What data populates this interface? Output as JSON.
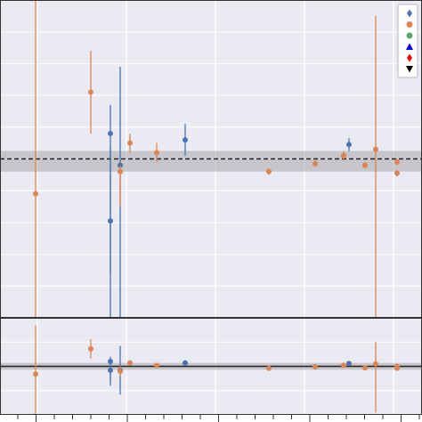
{
  "chart_data": [
    {
      "type": "scatter",
      "panel": "main",
      "grid": true,
      "xlim": [
        0,
        23.7
      ],
      "ylim": [
        0,
        10
      ],
      "legend": {
        "placement": "top-right",
        "entries": [
          {
            "marker": "diamond",
            "color": "#4c72b0"
          },
          {
            "marker": "circle",
            "color": "#dd8452"
          },
          {
            "marker": "circle",
            "color": "#55a868"
          },
          {
            "marker": "triangle-up",
            "color": "#0000ff"
          },
          {
            "marker": "diamond",
            "color": "#ff0000"
          },
          {
            "marker": "triangle-down",
            "color": "#000000"
          }
        ]
      },
      "reference": {
        "value": 5.0,
        "band": [
          4.6,
          5.25
        ],
        "style": "dashed",
        "color": "#222222"
      },
      "points": [
        {
          "x": 2.0,
          "y": 3.9,
          "err_lo": 3.9,
          "err_hi": 6.1,
          "color": "#dd8452"
        },
        {
          "x": 5.1,
          "y": 7.1,
          "err_lo": 1.3,
          "err_hi": 1.3,
          "color": "#dd8452"
        },
        {
          "x": 6.2,
          "y": 5.8,
          "err_lo": 4.4,
          "err_hi": 0.9,
          "color": "#4c72b0"
        },
        {
          "x": 6.2,
          "y": 3.05,
          "err_lo": 3.05,
          "err_hi": 2.35,
          "color": "#4c72b0"
        },
        {
          "x": 6.75,
          "y": 4.8,
          "err_lo": 4.8,
          "err_hi": 3.1,
          "color": "#4c72b0"
        },
        {
          "x": 6.75,
          "y": 4.6,
          "err_lo": 1.1,
          "err_hi": 0.2,
          "color": "#dd8452"
        },
        {
          "x": 7.3,
          "y": 5.5,
          "err_lo": 0.3,
          "err_hi": 0.3,
          "color": "#dd8452"
        },
        {
          "x": 8.8,
          "y": 5.2,
          "err_lo": 0.3,
          "err_hi": 0.3,
          "color": "#dd8452"
        },
        {
          "x": 10.4,
          "y": 5.6,
          "err_lo": 0.5,
          "err_hi": 0.5,
          "color": "#4c72b0"
        },
        {
          "x": 15.1,
          "y": 4.6,
          "err_lo": 0.1,
          "err_hi": 0.1,
          "color": "#dd8452"
        },
        {
          "x": 17.7,
          "y": 4.85,
          "err_lo": 0.1,
          "err_hi": 0.1,
          "color": "#dd8452"
        },
        {
          "x": 19.3,
          "y": 5.1,
          "err_lo": 0.15,
          "err_hi": 0.15,
          "color": "#dd8452"
        },
        {
          "x": 19.3,
          "y": 5.1,
          "err_lo": 0.05,
          "err_hi": 0.05,
          "color": "#dd8452"
        },
        {
          "x": 19.6,
          "y": 5.45,
          "err_lo": 0.2,
          "err_hi": 0.2,
          "color": "#4c72b0"
        },
        {
          "x": 20.5,
          "y": 4.8,
          "err_lo": 0.1,
          "err_hi": 0.1,
          "color": "#dd8452"
        },
        {
          "x": 21.1,
          "y": 5.3,
          "err_lo": 5.3,
          "err_hi": 4.2,
          "color": "#dd8452"
        },
        {
          "x": 22.3,
          "y": 4.9,
          "err_lo": 0.1,
          "err_hi": 0.1,
          "color": "#dd8452"
        },
        {
          "x": 22.3,
          "y": 4.55,
          "err_lo": 0.1,
          "err_hi": 0.1,
          "color": "#dd8452"
        },
        {
          "x": 23.8,
          "y": 5.3,
          "err_lo": 1.5,
          "err_hi": 1.5,
          "color": "#55a868"
        },
        {
          "x": 23.8,
          "y": 4.55,
          "err_lo": 0.15,
          "err_hi": 0.15,
          "color": "#dd8452"
        }
      ]
    },
    {
      "type": "scatter",
      "panel": "residual",
      "grid": true,
      "xlim": [
        0,
        23.7
      ],
      "ylim": [
        -1,
        1
      ],
      "reference": {
        "value": 0.0,
        "band": [
          -0.07,
          0.07
        ],
        "style": "solid",
        "color": "#222222"
      },
      "points": [
        {
          "x": 2.0,
          "y": -0.16,
          "err_lo": 0.84,
          "err_hi": 1.0,
          "color": "#dd8452"
        },
        {
          "x": 5.1,
          "y": 0.36,
          "err_lo": 0.2,
          "err_hi": 0.2,
          "color": "#dd8452"
        },
        {
          "x": 6.2,
          "y": 0.1,
          "err_lo": 0.5,
          "err_hi": 0.1,
          "color": "#4c72b0"
        },
        {
          "x": 6.2,
          "y": -0.08,
          "err_lo": 0.2,
          "err_hi": 0.1,
          "color": "#4c72b0"
        },
        {
          "x": 6.75,
          "y": -0.08,
          "err_lo": 0.5,
          "err_hi": 0.5,
          "color": "#4c72b0"
        },
        {
          "x": 6.75,
          "y": -0.1,
          "err_lo": 0.1,
          "err_hi": 0.1,
          "color": "#dd8452"
        },
        {
          "x": 7.3,
          "y": 0.07,
          "err_lo": 0.02,
          "err_hi": 0.02,
          "color": "#dd8452"
        },
        {
          "x": 8.8,
          "y": 0.02,
          "err_lo": 0.02,
          "err_hi": 0.02,
          "color": "#dd8452"
        },
        {
          "x": 10.4,
          "y": 0.07,
          "err_lo": 0.05,
          "err_hi": 0.05,
          "color": "#4c72b0"
        },
        {
          "x": 15.1,
          "y": -0.04,
          "err_lo": 0.01,
          "err_hi": 0.01,
          "color": "#dd8452"
        },
        {
          "x": 17.7,
          "y": -0.01,
          "err_lo": 0.01,
          "err_hi": 0.01,
          "color": "#dd8452"
        },
        {
          "x": 19.3,
          "y": 0.02,
          "err_lo": 0.01,
          "err_hi": 0.01,
          "color": "#dd8452"
        },
        {
          "x": 19.6,
          "y": 0.06,
          "err_lo": 0.02,
          "err_hi": 0.02,
          "color": "#4c72b0"
        },
        {
          "x": 20.5,
          "y": -0.03,
          "err_lo": 0.01,
          "err_hi": 0.01,
          "color": "#dd8452"
        },
        {
          "x": 21.1,
          "y": 0.05,
          "err_lo": 1.0,
          "err_hi": 0.45,
          "color": "#dd8452"
        },
        {
          "x": 22.3,
          "y": 0.0,
          "err_lo": 0.01,
          "err_hi": 0.01,
          "color": "#dd8452"
        },
        {
          "x": 22.3,
          "y": -0.04,
          "err_lo": 0.01,
          "err_hi": 0.01,
          "color": "#dd8452"
        },
        {
          "x": 23.8,
          "y": 0.06,
          "err_lo": 0.2,
          "err_hi": 0.2,
          "color": "#55a868"
        },
        {
          "x": 23.8,
          "y": -0.04,
          "err_lo": 0.02,
          "err_hi": 0.02,
          "color": "#dd8452"
        }
      ]
    }
  ]
}
